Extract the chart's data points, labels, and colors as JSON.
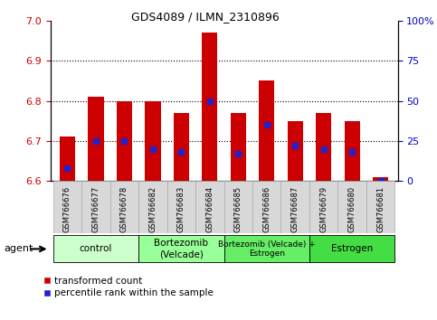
{
  "title": "GDS4089 / ILMN_2310896",
  "samples": [
    "GSM766676",
    "GSM766677",
    "GSM766678",
    "GSM766682",
    "GSM766683",
    "GSM766684",
    "GSM766685",
    "GSM766686",
    "GSM766687",
    "GSM766679",
    "GSM766680",
    "GSM766681"
  ],
  "bar_values": [
    6.71,
    6.81,
    6.8,
    6.8,
    6.77,
    6.97,
    6.77,
    6.85,
    6.75,
    6.77,
    6.75,
    6.61
  ],
  "percentile_values": [
    8,
    25,
    25,
    20,
    18,
    50,
    17,
    35,
    22,
    20,
    18,
    0
  ],
  "bar_bottom": 6.6,
  "ylim_left": [
    6.6,
    7.0
  ],
  "ylim_right": [
    0,
    100
  ],
  "yticks_left": [
    6.6,
    6.7,
    6.8,
    6.9,
    7.0
  ],
  "yticks_right": [
    0,
    25,
    50,
    75,
    100
  ],
  "hlines": [
    6.7,
    6.8,
    6.9
  ],
  "bar_color": "#cc0000",
  "percentile_color": "#2222cc",
  "groups": [
    {
      "label": "control",
      "start": 0,
      "end": 3,
      "color": "#ccffcc"
    },
    {
      "label": "Bortezomib\n(Velcade)",
      "start": 3,
      "end": 6,
      "color": "#99ff99"
    },
    {
      "label": "Bortezomib (Velcade) +\nEstrogen",
      "start": 6,
      "end": 9,
      "color": "#66ee66"
    },
    {
      "label": "Estrogen",
      "start": 9,
      "end": 12,
      "color": "#44dd44"
    }
  ],
  "legend_red_label": "transformed count",
  "legend_blue_label": "percentile rank within the sample",
  "agent_label": "agent",
  "tick_label_color_left": "#cc0000",
  "tick_label_color_right": "#0000cc",
  "bar_width": 0.55,
  "tick_fontsize": 8,
  "label_fontsize": 7,
  "title_fontsize": 9
}
